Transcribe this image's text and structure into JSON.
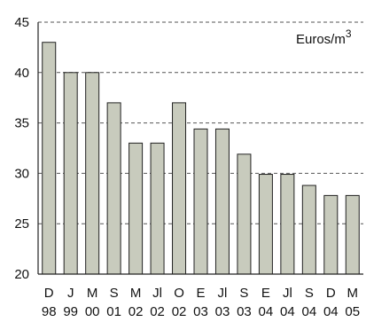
{
  "chart_data": {
    "type": "bar",
    "title": "",
    "xlabel": "",
    "ylabel": "",
    "unit_label": "Euros/m",
    "unit_superscript": "3",
    "ylim": [
      20,
      45
    ],
    "yticks": [
      20,
      25,
      30,
      35,
      40,
      45
    ],
    "grid": "horizontal dashed",
    "categories": [
      {
        "line1": "D",
        "line2": "98"
      },
      {
        "line1": "J",
        "line2": "99"
      },
      {
        "line1": "M",
        "line2": "00"
      },
      {
        "line1": "S",
        "line2": "01"
      },
      {
        "line1": "M",
        "line2": "02"
      },
      {
        "line1": "Jl",
        "line2": "02"
      },
      {
        "line1": "O",
        "line2": "02"
      },
      {
        "line1": "E",
        "line2": "03"
      },
      {
        "line1": "Jl",
        "line2": "03"
      },
      {
        "line1": "S",
        "line2": "03"
      },
      {
        "line1": "E",
        "line2": "04"
      },
      {
        "line1": "Jl",
        "line2": "04"
      },
      {
        "line1": "S",
        "line2": "04"
      },
      {
        "line1": "D",
        "line2": "04"
      },
      {
        "line1": "M",
        "line2": "05"
      }
    ],
    "values": [
      43.0,
      40.0,
      40.0,
      37.0,
      33.0,
      33.0,
      37.0,
      34.4,
      34.4,
      31.9,
      29.9,
      29.9,
      28.8,
      27.8,
      27.8
    ],
    "colors": {
      "bar_fill": "#c8cbbd",
      "bar_stroke": "#222222",
      "axis": "#222222",
      "grid": "#555555",
      "text": "#111111"
    }
  }
}
